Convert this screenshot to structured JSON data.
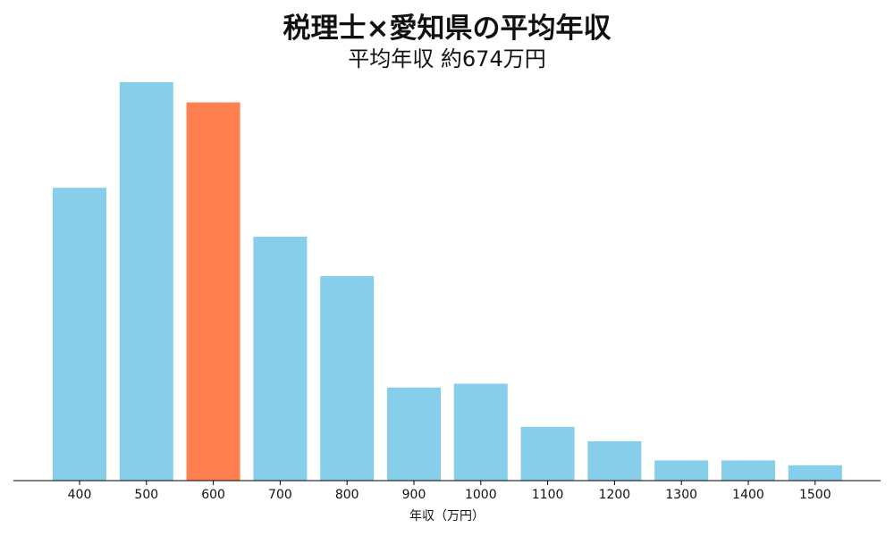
{
  "chart_data": {
    "type": "bar",
    "title": "税理士×愛知県の平均年収",
    "subtitle": "平均年収 約674万円",
    "xlabel": "年収（万円）",
    "ylabel": "",
    "categories": [
      "400",
      "500",
      "600",
      "700",
      "800",
      "900",
      "1000",
      "1100",
      "1200",
      "1300",
      "1400",
      "1500"
    ],
    "values": [
      30.5,
      41.5,
      39.4,
      25.4,
      21.3,
      9.7,
      10.1,
      5.6,
      4.1,
      2.1,
      2.1,
      1.6
    ],
    "highlight_category": "600",
    "ylim": [
      0,
      45
    ],
    "colors": {
      "bar": "#87CEEB",
      "highlight": "#FF7F50",
      "axis": "#000000"
    },
    "grid": false,
    "y_axis_visible": false
  }
}
